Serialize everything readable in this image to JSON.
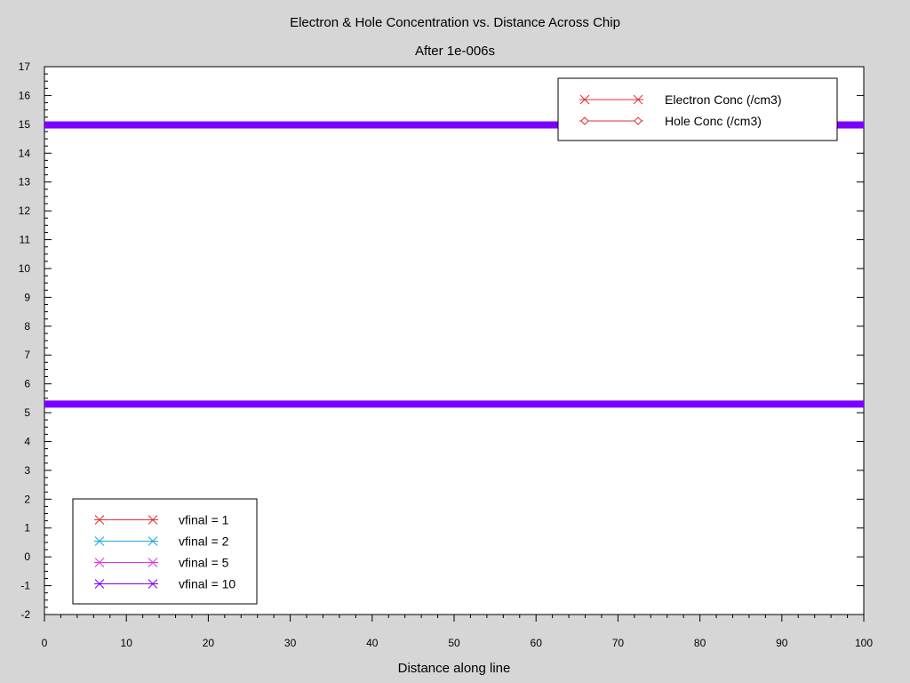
{
  "chart_data": {
    "type": "line",
    "title": "Electron & Hole Concentration vs. Distance Across Chip",
    "subtitle": "After 1e-006s",
    "xlabel": "Distance along line",
    "ylabel": "",
    "xlim": [
      0,
      100
    ],
    "ylim": [
      -2,
      17
    ],
    "xticks": [
      0,
      10,
      20,
      30,
      40,
      50,
      60,
      70,
      80,
      90,
      100
    ],
    "yticks": [
      -2,
      -1,
      0,
      1,
      2,
      3,
      4,
      5,
      6,
      7,
      8,
      9,
      10,
      11,
      12,
      13,
      14,
      15,
      16,
      17
    ],
    "grid": false,
    "series": [
      {
        "name": "vfinal = 10",
        "quantity": "Electron Conc (/cm3)",
        "color": "#7b00ff",
        "marker": "cross",
        "x": [
          0,
          100
        ],
        "y": [
          14.98,
          14.98
        ]
      },
      {
        "name": "vfinal = 10",
        "quantity": "Hole Conc (/cm3)",
        "color": "#7b00ff",
        "marker": "diamond",
        "x": [
          0,
          100
        ],
        "y": [
          5.3,
          5.3
        ]
      }
    ],
    "legends": [
      {
        "placement": "top-right",
        "entries": [
          {
            "label": "Electron Conc (/cm3)",
            "marker": "cross",
            "color": "#e03030"
          },
          {
            "label": "Hole Conc (/cm3)",
            "marker": "diamond",
            "color": "#e03030"
          }
        ]
      },
      {
        "placement": "bottom-left",
        "entries": [
          {
            "label": "vfinal = 1",
            "marker": "cross",
            "color": "#e03030"
          },
          {
            "label": "vfinal = 2",
            "marker": "cross",
            "color": "#1aa7e0"
          },
          {
            "label": "vfinal = 5",
            "marker": "cross",
            "color": "#e030e0"
          },
          {
            "label": "vfinal = 10",
            "marker": "cross",
            "color": "#7b00ff"
          }
        ]
      }
    ]
  }
}
